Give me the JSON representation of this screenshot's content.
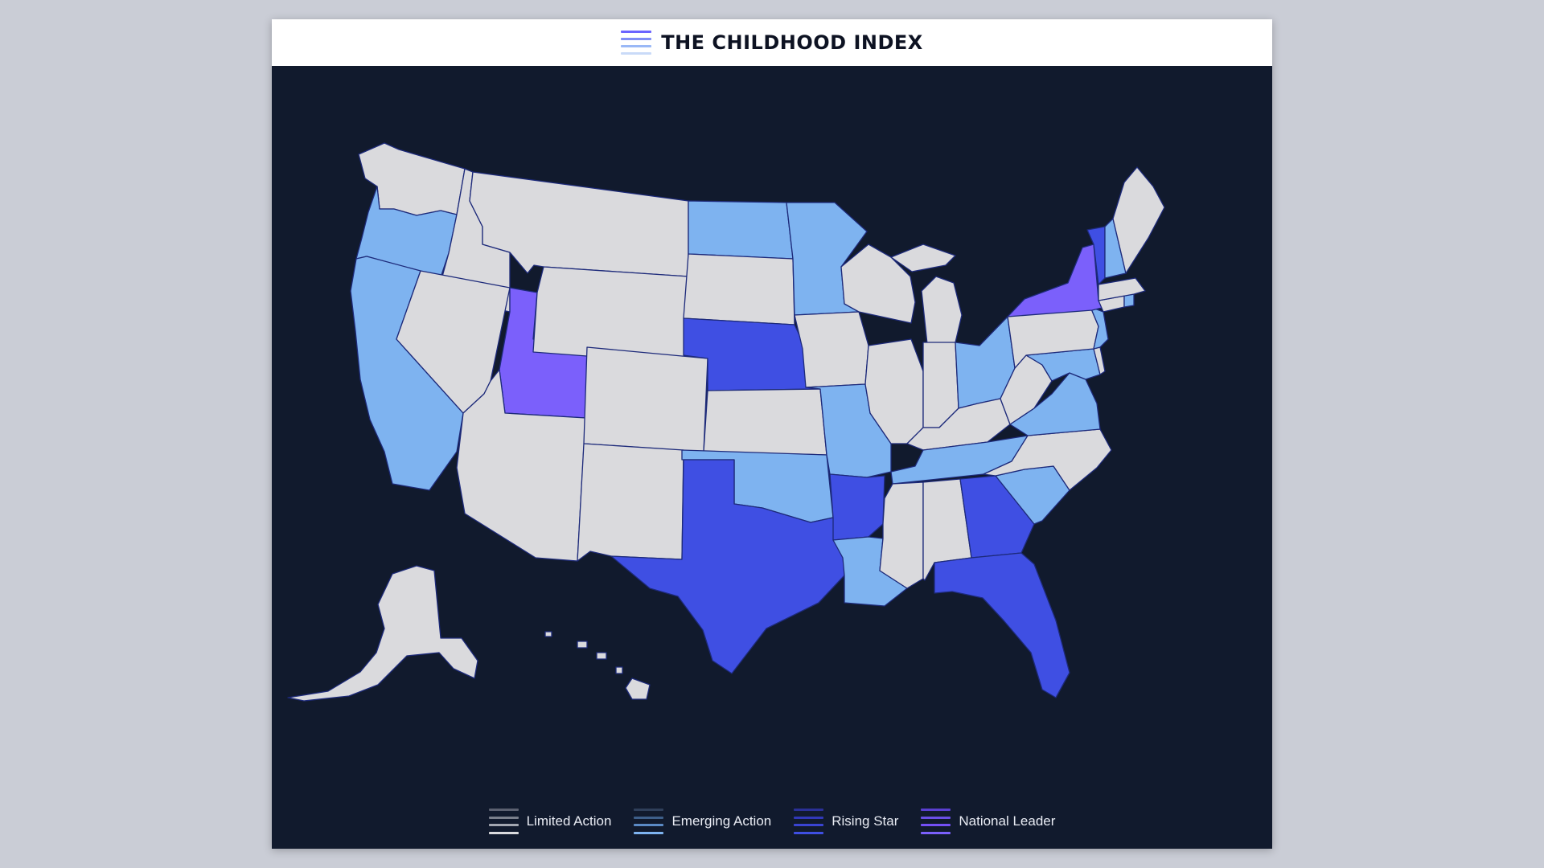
{
  "header": {
    "title": "THE CHILDHOOD INDEX",
    "logo_colors": [
      "#6b63ff",
      "#7f8cf5",
      "#9ab8f6",
      "#c9daf8"
    ]
  },
  "colors": {
    "background": "#111a2d",
    "limited": "#dadadd",
    "emerging": "#7eb3f0",
    "rising": "#3f4fe3",
    "leader": "#7b60fb"
  },
  "legend": [
    {
      "key": "limited",
      "label": "Limited Action",
      "stripes": [
        "#5b6070",
        "#7a7f8c",
        "#a2a6b0",
        "#dadadd"
      ]
    },
    {
      "key": "emerging",
      "label": "Emerging Action",
      "stripes": [
        "#2f3f5a",
        "#3e5f8a",
        "#5b8ac5",
        "#7eb3f0"
      ]
    },
    {
      "key": "rising",
      "label": "Rising Star",
      "stripes": [
        "#2a3096",
        "#3138b8",
        "#3a44d2",
        "#3f4fe3"
      ]
    },
    {
      "key": "leader",
      "label": "National Leader",
      "stripes": [
        "#5a3fd0",
        "#6a4fe6",
        "#744ff5",
        "#7b60fb"
      ]
    }
  ],
  "states": [
    {
      "name": "Washington",
      "category": "limited"
    },
    {
      "name": "Oregon",
      "category": "emerging"
    },
    {
      "name": "California",
      "category": "emerging"
    },
    {
      "name": "Idaho",
      "category": "limited"
    },
    {
      "name": "Nevada",
      "category": "limited"
    },
    {
      "name": "Utah",
      "category": "leader"
    },
    {
      "name": "Arizona",
      "category": "limited"
    },
    {
      "name": "Montana",
      "category": "limited"
    },
    {
      "name": "Wyoming",
      "category": "limited"
    },
    {
      "name": "Colorado",
      "category": "limited"
    },
    {
      "name": "New Mexico",
      "category": "limited"
    },
    {
      "name": "North Dakota",
      "category": "emerging"
    },
    {
      "name": "South Dakota",
      "category": "limited"
    },
    {
      "name": "Nebraska",
      "category": "rising"
    },
    {
      "name": "Kansas",
      "category": "limited"
    },
    {
      "name": "Oklahoma",
      "category": "emerging"
    },
    {
      "name": "Texas",
      "category": "rising"
    },
    {
      "name": "Minnesota",
      "category": "emerging"
    },
    {
      "name": "Iowa",
      "category": "limited"
    },
    {
      "name": "Missouri",
      "category": "emerging"
    },
    {
      "name": "Arkansas",
      "category": "rising"
    },
    {
      "name": "Louisiana",
      "category": "emerging"
    },
    {
      "name": "Wisconsin",
      "category": "limited"
    },
    {
      "name": "Illinois",
      "category": "limited"
    },
    {
      "name": "Michigan",
      "category": "limited"
    },
    {
      "name": "Indiana",
      "category": "limited"
    },
    {
      "name": "Ohio",
      "category": "emerging"
    },
    {
      "name": "Kentucky",
      "category": "limited"
    },
    {
      "name": "Tennessee",
      "category": "emerging"
    },
    {
      "name": "Mississippi",
      "category": "limited"
    },
    {
      "name": "Alabama",
      "category": "limited"
    },
    {
      "name": "Georgia",
      "category": "rising"
    },
    {
      "name": "Florida",
      "category": "rising"
    },
    {
      "name": "South Carolina",
      "category": "emerging"
    },
    {
      "name": "North Carolina",
      "category": "limited"
    },
    {
      "name": "Virginia",
      "category": "emerging"
    },
    {
      "name": "West Virginia",
      "category": "limited"
    },
    {
      "name": "Maryland",
      "category": "emerging"
    },
    {
      "name": "Delaware",
      "category": "limited"
    },
    {
      "name": "Pennsylvania",
      "category": "limited"
    },
    {
      "name": "New Jersey",
      "category": "emerging"
    },
    {
      "name": "New York",
      "category": "leader"
    },
    {
      "name": "Connecticut",
      "category": "limited"
    },
    {
      "name": "Rhode Island",
      "category": "emerging"
    },
    {
      "name": "Massachusetts",
      "category": "limited"
    },
    {
      "name": "Vermont",
      "category": "rising"
    },
    {
      "name": "New Hampshire",
      "category": "emerging"
    },
    {
      "name": "Maine",
      "category": "limited"
    },
    {
      "name": "Alaska",
      "category": "limited"
    },
    {
      "name": "Hawaii",
      "category": "limited"
    }
  ]
}
